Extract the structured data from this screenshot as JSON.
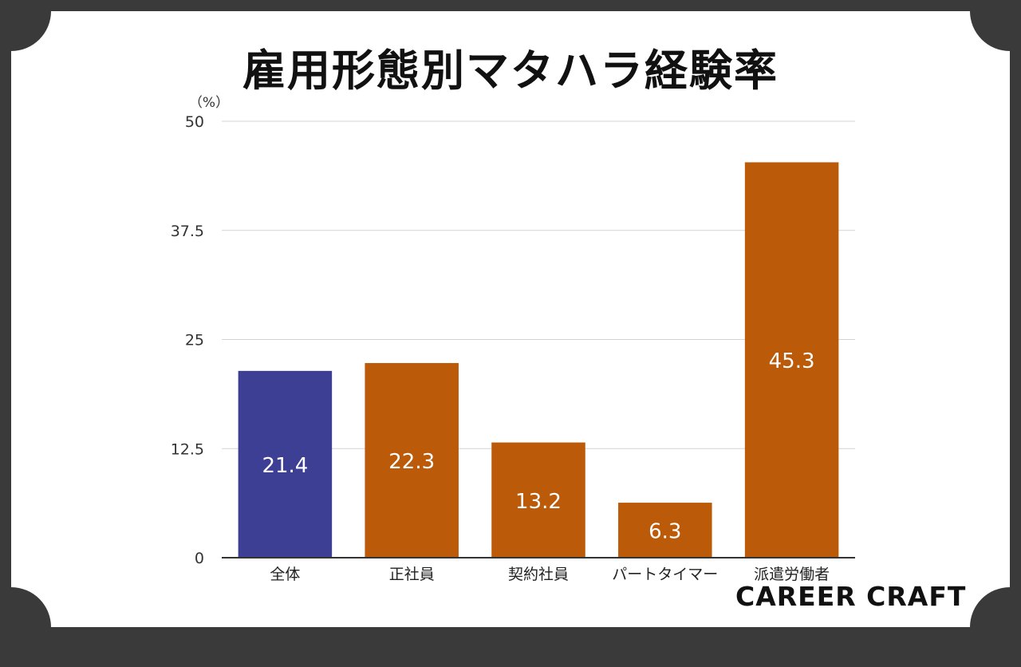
{
  "title": "雇用形態別マタハラ経験率",
  "logo": "CAREER CRAFT",
  "chart_data": {
    "type": "bar",
    "unit_label": "（%）",
    "categories": [
      "全体",
      "正社員",
      "契約社員",
      "パートタイマー",
      "派遣労働者"
    ],
    "values": [
      21.4,
      22.3,
      13.2,
      6.3,
      45.3
    ],
    "value_labels": [
      "21.4",
      "22.3",
      "13.2",
      "6.3",
      "45.3"
    ],
    "y_ticks": [
      "0",
      "12.5",
      "25",
      "37.5",
      "50"
    ],
    "ylim": [
      0,
      50
    ],
    "grid": true,
    "colors": [
      "#3d3f94",
      "#bb5a08",
      "#bb5a08",
      "#bb5a08",
      "#bb5a08"
    ],
    "label_color": "#ffffff"
  }
}
